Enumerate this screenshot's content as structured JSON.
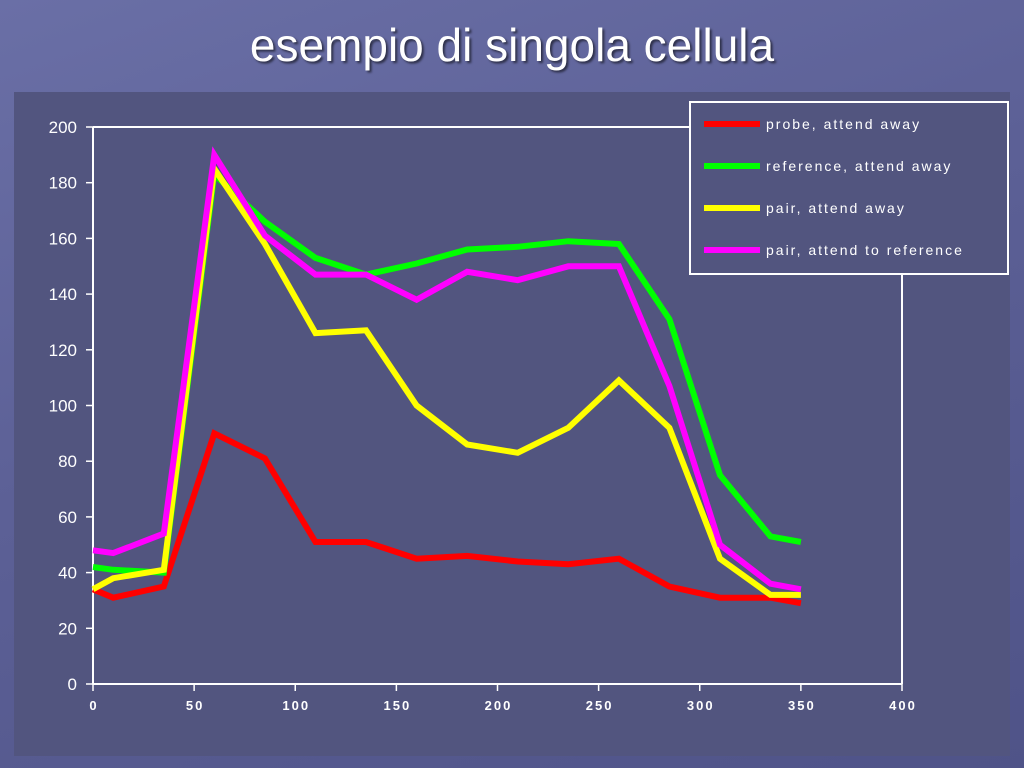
{
  "slide": {
    "title": "esempio di singola cellula"
  },
  "colors": {
    "background": "#5c6096",
    "plot_area": "#52557f",
    "axis": "#ffffff"
  },
  "chart_data": {
    "type": "line",
    "title": "",
    "xlabel": "",
    "ylabel": "",
    "xlim": [
      0,
      400
    ],
    "ylim": [
      0,
      200
    ],
    "x_ticks": [
      0,
      50,
      100,
      150,
      200,
      250,
      300,
      350,
      400
    ],
    "y_ticks": [
      0,
      20,
      40,
      60,
      80,
      100,
      120,
      140,
      160,
      180,
      200
    ],
    "x_tick_labels": [
      "0",
      "50",
      "100",
      "150",
      "200",
      "250",
      "300",
      "350",
      "400"
    ],
    "y_tick_labels": [
      "0",
      "20",
      "40",
      "60",
      "80",
      "100",
      "120",
      "140",
      "160",
      "180",
      "200"
    ],
    "grid": false,
    "legend_position": "top-right",
    "x": [
      0,
      10,
      35,
      60,
      85,
      110,
      135,
      160,
      185,
      210,
      235,
      260,
      285,
      310,
      335,
      350
    ],
    "series": [
      {
        "name": "probe, attend away",
        "color": "#ff0000",
        "values": [
          34,
          31,
          35,
          90,
          81,
          51,
          51,
          45,
          46,
          44,
          43,
          45,
          35,
          31,
          31,
          29
        ]
      },
      {
        "name": "reference, attend away",
        "color": "#00ff00",
        "values": [
          42,
          41,
          40,
          183,
          166,
          153,
          147,
          151,
          156,
          157,
          159,
          158,
          131,
          75,
          53,
          51
        ]
      },
      {
        "name": "pair, attend away",
        "color": "#ffff00",
        "values": [
          34,
          38,
          41,
          185,
          158,
          126,
          127,
          100,
          86,
          83,
          92,
          109,
          92,
          45,
          32,
          32
        ]
      },
      {
        "name": "pair, attend to reference",
        "color": "#ff00ff",
        "values": [
          48,
          47,
          54,
          190,
          161,
          147,
          147,
          138,
          148,
          145,
          150,
          150,
          107,
          50,
          36,
          34
        ]
      }
    ]
  }
}
